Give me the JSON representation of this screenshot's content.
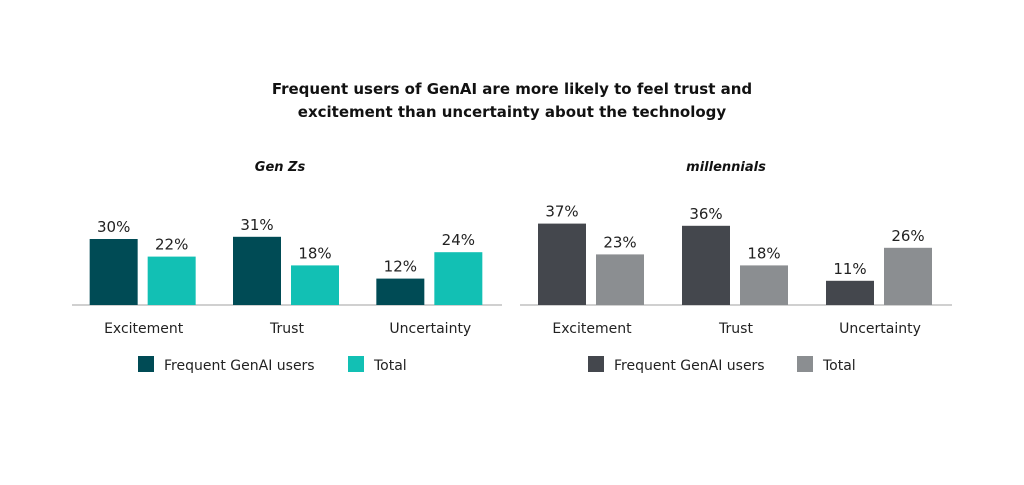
{
  "title": {
    "line1": "Frequent users of GenAI are more likely to feel trust and",
    "line2": "excitement than uncertainty about the technology"
  },
  "chart_data": [
    {
      "type": "bar",
      "title": "Gen Zs",
      "categories": [
        "Excitement",
        "Trust",
        "Uncertainty"
      ],
      "series": [
        {
          "name": "Frequent GenAI users",
          "values": [
            30,
            31,
            12
          ],
          "labels": [
            "30%",
            "31%",
            "12%"
          ],
          "color": "#004b55"
        },
        {
          "name": "Total",
          "values": [
            22,
            18,
            24
          ],
          "labels": [
            "22%",
            "18%",
            "24%"
          ],
          "color": "#12c0b4"
        }
      ],
      "ylim": [
        0,
        40
      ],
      "grid": false,
      "legend": "bottom"
    },
    {
      "type": "bar",
      "title": "millennials",
      "categories": [
        "Excitement",
        "Trust",
        "Uncertainty"
      ],
      "series": [
        {
          "name": "Frequent GenAI users",
          "values": [
            37,
            36,
            11
          ],
          "labels": [
            "37%",
            "36%",
            "11%"
          ],
          "color": "#44474d"
        },
        {
          "name": "Total",
          "values": [
            23,
            18,
            26
          ],
          "labels": [
            "23%",
            "18%",
            "26%"
          ],
          "color": "#8b8e91"
        }
      ],
      "ylim": [
        0,
        40
      ],
      "grid": false,
      "legend": "bottom"
    }
  ]
}
